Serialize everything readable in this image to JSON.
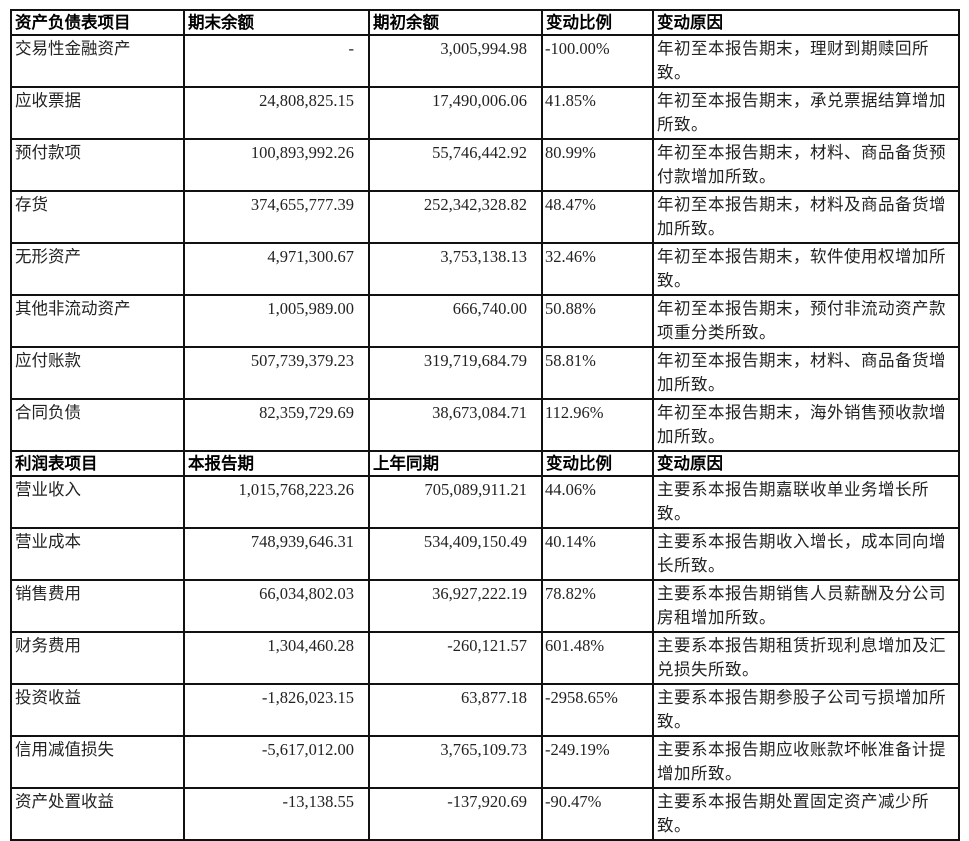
{
  "balance_sheet": {
    "headers": [
      "资产负债表项目",
      "期末余额",
      "期初余额",
      "变动比例",
      "变动原因"
    ],
    "rows": [
      [
        "交易性金融资产",
        "-",
        "3,005,994.98",
        "-100.00%",
        "年初至本报告期末，理财到期赎回所致。"
      ],
      [
        "应收票据",
        "24,808,825.15",
        "17,490,006.06",
        "41.85%",
        "年初至本报告期末，承兑票据结算增加所致。"
      ],
      [
        "预付款项",
        "100,893,992.26",
        "55,746,442.92",
        "80.99%",
        "年初至本报告期末，材料、商品备货预付款增加所致。"
      ],
      [
        "存货",
        "374,655,777.39",
        "252,342,328.82",
        "48.47%",
        "年初至本报告期末，材料及商品备货增加所致。"
      ],
      [
        "无形资产",
        "4,971,300.67",
        "3,753,138.13",
        "32.46%",
        "年初至本报告期末，软件使用权增加所致。"
      ],
      [
        "其他非流动资产",
        "1,005,989.00",
        "666,740.00",
        "50.88%",
        "年初至本报告期末，预付非流动资产款项重分类所致。"
      ],
      [
        "应付账款",
        "507,739,379.23",
        "319,719,684.79",
        "58.81%",
        "年初至本报告期末，材料、商品备货增加所致。"
      ],
      [
        "合同负债",
        "82,359,729.69",
        "38,673,084.71",
        "112.96%",
        "年初至本报告期末，海外销售预收款增加所致。"
      ]
    ]
  },
  "income_statement": {
    "headers": [
      "利润表项目",
      "本报告期",
      "上年同期",
      "变动比例",
      "变动原因"
    ],
    "rows": [
      [
        "营业收入",
        "1,015,768,223.26",
        "705,089,911.21",
        "44.06%",
        "主要系本报告期嘉联收单业务增长所致。"
      ],
      [
        "营业成本",
        "748,939,646.31",
        "534,409,150.49",
        "40.14%",
        "主要系本报告期收入增长，成本同向增长所致。"
      ],
      [
        "销售费用",
        "66,034,802.03",
        "36,927,222.19",
        "78.82%",
        "主要系本报告期销售人员薪酬及分公司房租增加所致。"
      ],
      [
        "财务费用",
        "1,304,460.28",
        "-260,121.57",
        "601.48%",
        "主要系本报告期租赁折现利息增加及汇兑损失所致。"
      ],
      [
        "投资收益",
        "-1,826,023.15",
        "63,877.18",
        "-2958.65%",
        "主要系本报告期参股子公司亏损增加所致。"
      ],
      [
        "信用减值损失",
        "-5,617,012.00",
        "3,765,109.73",
        "-249.19%",
        "主要系本报告期应收账款坏帐准备计提增加所致。"
      ],
      [
        "资产处置收益",
        "-13,138.55",
        "-137,920.69",
        "-90.47%",
        "主要系本报告期处置固定资产减少所致。"
      ]
    ]
  }
}
